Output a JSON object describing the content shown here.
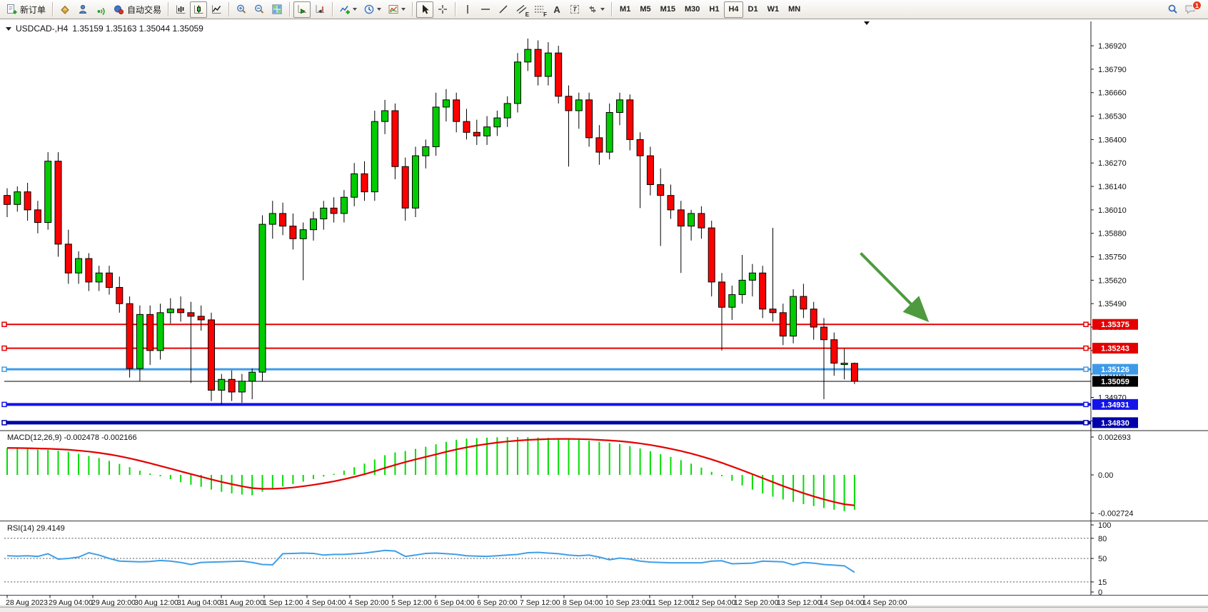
{
  "toolbar": {
    "new_order_label": "新订单",
    "auto_trading_label": "自动交易",
    "timeframes": [
      "M1",
      "M5",
      "M15",
      "M30",
      "H1",
      "H4",
      "D1",
      "W1",
      "MN"
    ],
    "active_timeframe": "H4",
    "notification_badge": "1",
    "channel_sub": "E",
    "fibo_sub": "F",
    "text_tool": "A",
    "label_tool": "T"
  },
  "chart_header": {
    "symbol_period": "USDCAD-,H4",
    "ohlc_values": "1.35159 1.35163 1.35044 1.35059"
  },
  "chart_data": [
    {
      "type": "candlestick",
      "title": "USDCAD-,H4",
      "up_color": "#00cc00",
      "down_color": "#ff0000",
      "wick_color": "#000000",
      "ylim": [
        1.34789,
        1.37055
      ],
      "yticks": [
        "1.36920",
        "1.36790",
        "1.36660",
        "1.36530",
        "1.36400",
        "1.36270",
        "1.36140",
        "1.36010",
        "1.35880",
        "1.35750",
        "1.35620",
        "1.35490",
        "1.35360",
        "1.35230",
        "1.35100",
        "1.34970",
        "1.34840"
      ],
      "xtick_labels": [
        "28 Aug 2023",
        "29 Aug 04:00",
        "29 Aug 20:00",
        "30 Aug 12:00",
        "31 Aug 04:00",
        "31 Aug 20:00",
        "1 Sep 12:00",
        "4 Sep 04:00",
        "4 Sep 20:00",
        "5 Sep 12:00",
        "6 Sep 04:00",
        "6 Sep 20:00",
        "7 Sep 12:00",
        "8 Sep 04:00",
        "10 Sep 23:00",
        "11 Sep 12:00",
        "12 Sep 04:00",
        "12 Sep 20:00",
        "13 Sep 12:00",
        "14 Sep 04:00",
        "14 Sep 20:00"
      ],
      "hlines": [
        {
          "price": 1.35375,
          "label": "1.35375",
          "color": "#e40000",
          "width": 2
        },
        {
          "price": 1.35243,
          "label": "1.35243",
          "color": "#e40000",
          "width": 2
        },
        {
          "price": 1.35126,
          "label": "1.35126",
          "color": "#3e9ae8",
          "width": 3
        },
        {
          "price": 1.35059,
          "label": "1.35059",
          "color": "#000000",
          "width": 1
        },
        {
          "price": 1.34931,
          "label": "1.34931",
          "color": "#1414e8",
          "width": 4
        },
        {
          "price": 1.3483,
          "label": "1.34830",
          "color": "#0000a8",
          "width": 5
        }
      ],
      "annotation_arrow": {
        "start": {
          "bar": 83.6,
          "price": 1.3577
        },
        "end": {
          "bar": 89.9,
          "price": 1.3541
        },
        "color": "#4e9b3f"
      },
      "ohlc": [
        [
          1.3609,
          1.3613,
          1.3597,
          1.3604
        ],
        [
          1.3604,
          1.3614,
          1.36,
          1.3611
        ],
        [
          1.3611,
          1.3616,
          1.3595,
          1.3601
        ],
        [
          1.3601,
          1.3606,
          1.3588,
          1.3594
        ],
        [
          1.3594,
          1.3633,
          1.359,
          1.3628
        ],
        [
          1.3628,
          1.3633,
          1.3575,
          1.3582
        ],
        [
          1.3582,
          1.359,
          1.356,
          1.3566
        ],
        [
          1.3566,
          1.3578,
          1.356,
          1.3574
        ],
        [
          1.3574,
          1.3577,
          1.3556,
          1.3561
        ],
        [
          1.3561,
          1.357,
          1.3556,
          1.3566
        ],
        [
          1.3566,
          1.357,
          1.3554,
          1.3558
        ],
        [
          1.3558,
          1.3564,
          1.3544,
          1.3549
        ],
        [
          1.3549,
          1.3553,
          1.3508,
          1.3513
        ],
        [
          1.3513,
          1.3548,
          1.3506,
          1.3543
        ],
        [
          1.3543,
          1.3548,
          1.3515,
          1.3523
        ],
        [
          1.3523,
          1.3549,
          1.3518,
          1.3544
        ],
        [
          1.3544,
          1.3552,
          1.3538,
          1.3546
        ],
        [
          1.3546,
          1.3553,
          1.3539,
          1.3544
        ],
        [
          1.3544,
          1.355,
          1.3505,
          1.3542
        ],
        [
          1.3542,
          1.3548,
          1.3534,
          1.354
        ],
        [
          1.354,
          1.3544,
          1.3495,
          1.3501
        ],
        [
          1.3501,
          1.351,
          1.3493,
          1.3507
        ],
        [
          1.3507,
          1.3512,
          1.3495,
          1.35
        ],
        [
          1.35,
          1.351,
          1.3494,
          1.3506
        ],
        [
          1.3506,
          1.3513,
          1.3496,
          1.3511
        ],
        [
          1.3511,
          1.3598,
          1.3506,
          1.3593
        ],
        [
          1.3593,
          1.3606,
          1.3585,
          1.3599
        ],
        [
          1.3599,
          1.3605,
          1.3587,
          1.3592
        ],
        [
          1.3592,
          1.3599,
          1.3579,
          1.3585
        ],
        [
          1.3585,
          1.3594,
          1.3562,
          1.359
        ],
        [
          1.359,
          1.36,
          1.3584,
          1.3596
        ],
        [
          1.3596,
          1.3606,
          1.359,
          1.3602
        ],
        [
          1.3602,
          1.3608,
          1.3594,
          1.3599
        ],
        [
          1.3599,
          1.3612,
          1.3594,
          1.3608
        ],
        [
          1.3608,
          1.3627,
          1.3603,
          1.3621
        ],
        [
          1.3621,
          1.3628,
          1.3606,
          1.3611
        ],
        [
          1.3611,
          1.3656,
          1.3606,
          1.365
        ],
        [
          1.365,
          1.3662,
          1.3643,
          1.3656
        ],
        [
          1.3656,
          1.366,
          1.3618,
          1.3625
        ],
        [
          1.3625,
          1.363,
          1.3595,
          1.3602
        ],
        [
          1.3602,
          1.3636,
          1.3597,
          1.3631
        ],
        [
          1.3631,
          1.364,
          1.3624,
          1.3636
        ],
        [
          1.3636,
          1.3666,
          1.3631,
          1.3658
        ],
        [
          1.3658,
          1.3668,
          1.365,
          1.3662
        ],
        [
          1.3662,
          1.3666,
          1.3644,
          1.365
        ],
        [
          1.365,
          1.3657,
          1.364,
          1.3644
        ],
        [
          1.3644,
          1.3651,
          1.3637,
          1.3642
        ],
        [
          1.3642,
          1.3653,
          1.3637,
          1.3647
        ],
        [
          1.3647,
          1.3656,
          1.3642,
          1.3652
        ],
        [
          1.3652,
          1.3664,
          1.3647,
          1.366
        ],
        [
          1.366,
          1.3688,
          1.3655,
          1.3683
        ],
        [
          1.3683,
          1.3696,
          1.3678,
          1.369
        ],
        [
          1.369,
          1.3695,
          1.367,
          1.3675
        ],
        [
          1.3675,
          1.3694,
          1.367,
          1.3688
        ],
        [
          1.3688,
          1.3692,
          1.366,
          1.3664
        ],
        [
          1.3664,
          1.367,
          1.3625,
          1.3656
        ],
        [
          1.3656,
          1.3666,
          1.3646,
          1.3662
        ],
        [
          1.3662,
          1.3666,
          1.3636,
          1.3641
        ],
        [
          1.3641,
          1.3648,
          1.3626,
          1.3633
        ],
        [
          1.3633,
          1.366,
          1.3629,
          1.3655
        ],
        [
          1.3655,
          1.3666,
          1.3648,
          1.3662
        ],
        [
          1.3662,
          1.3665,
          1.3634,
          1.364
        ],
        [
          1.364,
          1.3644,
          1.3602,
          1.3631
        ],
        [
          1.3631,
          1.3636,
          1.3609,
          1.3615
        ],
        [
          1.3615,
          1.3624,
          1.3581,
          1.3609
        ],
        [
          1.3609,
          1.3615,
          1.3596,
          1.3601
        ],
        [
          1.3601,
          1.3606,
          1.3566,
          1.3592
        ],
        [
          1.3592,
          1.3601,
          1.3584,
          1.3599
        ],
        [
          1.3599,
          1.3603,
          1.3585,
          1.3591
        ],
        [
          1.3591,
          1.3595,
          1.3553,
          1.3561
        ],
        [
          1.3561,
          1.3566,
          1.3523,
          1.3547
        ],
        [
          1.3547,
          1.3559,
          1.354,
          1.3554
        ],
        [
          1.3554,
          1.3576,
          1.3549,
          1.3562
        ],
        [
          1.3562,
          1.3571,
          1.3553,
          1.3566
        ],
        [
          1.3566,
          1.357,
          1.3541,
          1.3546
        ],
        [
          1.3546,
          1.3591,
          1.3539,
          1.3544
        ],
        [
          1.3544,
          1.3549,
          1.3526,
          1.3531
        ],
        [
          1.3531,
          1.3557,
          1.3527,
          1.3553
        ],
        [
          1.3553,
          1.356,
          1.3541,
          1.3546
        ],
        [
          1.3546,
          1.355,
          1.3529,
          1.3536
        ],
        [
          1.3536,
          1.3541,
          1.3496,
          1.3529
        ],
        [
          1.3529,
          1.3533,
          1.3509,
          1.3516
        ],
        [
          1.3516,
          1.3524,
          1.3507,
          1.3516
        ],
        [
          1.35159,
          1.35163,
          1.35044,
          1.35059
        ]
      ]
    },
    {
      "type": "macd",
      "name": "MACD(12,26,9)",
      "values_text": "-0.002478 -0.002166",
      "histogram_color": "#00dd00",
      "signal_color": "#e40000",
      "ylim": [
        -0.002724,
        0.002693
      ],
      "yticks": [
        "0.002693",
        "0.00",
        "-0.002724"
      ],
      "histogram": [
        0.0019,
        0.00188,
        0.00185,
        0.0018,
        0.00178,
        0.00172,
        0.00165,
        0.0015,
        0.00135,
        0.0012,
        0.001,
        0.00078,
        0.00055,
        0.0003,
        0.0001,
        -0.0001,
        -0.0003,
        -0.00052,
        -0.0007,
        -0.00085,
        -0.00105,
        -0.0012,
        -0.00132,
        -0.0014,
        -0.00145,
        -0.0012,
        -0.001,
        -0.00082,
        -0.00065,
        -0.00048,
        -0.0003,
        -0.00012,
        8e-05,
        0.0003,
        0.00055,
        0.0008,
        0.0011,
        0.0014,
        0.0016,
        0.0017,
        0.00185,
        0.002,
        0.00218,
        0.00235,
        0.0025,
        0.00258,
        0.00262,
        0.00265,
        0.00268,
        0.00269,
        0.00269,
        0.00268,
        0.00266,
        0.00264,
        0.0026,
        0.00255,
        0.0025,
        0.00243,
        0.00235,
        0.00228,
        0.0022,
        0.00205,
        0.00188,
        0.00168,
        0.00148,
        0.00128,
        0.00105,
        0.0008,
        0.00052,
        0.00022,
        -0.0001,
        -0.00042,
        -0.00075,
        -0.00105,
        -0.00132,
        -0.00155,
        -0.00175,
        -0.00192,
        -0.00208,
        -0.00222,
        -0.00235,
        -0.00248,
        -0.00258,
        -0.00248
      ],
      "signal": [
        0.00192,
        0.00191,
        0.0019,
        0.00188,
        0.00186,
        0.00183,
        0.00179,
        0.00173,
        0.00166,
        0.00157,
        0.00146,
        0.00133,
        0.00118,
        0.00101,
        0.00083,
        0.00064,
        0.00045,
        0.00025,
        6e-05,
        -0.00013,
        -0.00032,
        -0.0005,
        -0.00066,
        -0.00081,
        -0.00094,
        -0.00099,
        -0.00099,
        -0.00096,
        -0.0009,
        -0.00081,
        -0.00071,
        -0.00059,
        -0.00046,
        -0.00031,
        -0.00014,
        5e-05,
        0.00026,
        0.00049,
        0.00071,
        0.00091,
        0.0011,
        0.00128,
        0.00146,
        0.00164,
        0.00181,
        0.00196,
        0.00209,
        0.0022,
        0.0023,
        0.00238,
        0.00244,
        0.00249,
        0.00252,
        0.00255,
        0.00256,
        0.00256,
        0.00255,
        0.00253,
        0.00249,
        0.00245,
        0.0024,
        0.00233,
        0.00224,
        0.00213,
        0.002,
        0.00186,
        0.0017,
        0.00152,
        0.00132,
        0.0011,
        0.00086,
        0.0006,
        0.00033,
        5e-05,
        -0.00023,
        -0.00051,
        -0.00079,
        -0.00105,
        -0.0013,
        -0.00153,
        -0.00174,
        -0.00193,
        -0.00209,
        -0.00217
      ]
    },
    {
      "type": "line",
      "name": "RSI(14)",
      "value_text": "29.4149",
      "color": "#3e9fe8",
      "levels": [
        80,
        50,
        15
      ],
      "ylim": [
        0,
        100
      ],
      "yticks": [
        "100",
        "80",
        "50",
        "15",
        "0"
      ],
      "values": [
        54,
        53.5,
        54,
        53,
        57,
        49,
        50,
        52,
        58.5,
        55,
        50,
        46,
        45.5,
        45,
        45.5,
        47,
        46,
        44,
        41,
        44,
        44.5,
        45,
        45.5,
        46,
        44,
        41,
        40.5,
        57,
        57.5,
        58,
        57.5,
        55,
        56,
        56,
        57,
        58,
        60,
        62,
        61,
        53,
        55,
        57.5,
        58,
        57,
        56,
        54,
        53.5,
        53,
        54,
        55,
        56,
        58.5,
        59,
        58,
        57,
        55,
        54,
        55,
        52,
        48,
        50.5,
        49,
        46,
        44.5,
        44,
        43.5,
        43.5,
        43.5,
        43.5,
        46,
        46.5,
        42,
        42.5,
        43,
        46,
        45.5,
        45,
        40.5,
        44,
        43,
        41,
        40,
        39,
        29.41
      ]
    }
  ]
}
